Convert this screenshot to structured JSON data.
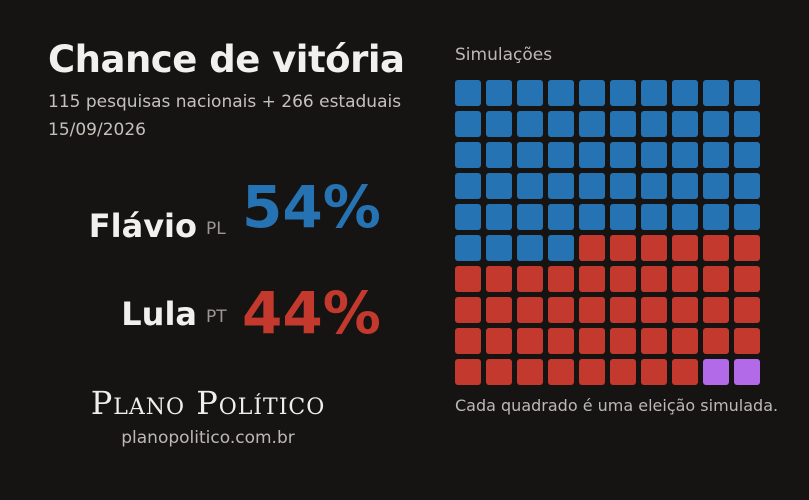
{
  "header": {
    "title": "Chance de vitória",
    "subtitle": "115 pesquisas nacionais + 266 estaduais",
    "date": "15/09/2026"
  },
  "candidates": [
    {
      "name": "Flávio",
      "party": "PL",
      "pct_label": "54%",
      "color": "#2673b3"
    },
    {
      "name": "Lula",
      "party": "PT",
      "pct_label": "44%",
      "color": "#c4392d"
    }
  ],
  "brand": {
    "name": "Plano Político",
    "url": "planopolitico.com.br"
  },
  "chart_data": {
    "type": "waffle",
    "title": "Simulações",
    "caption": "Cada quadrado é uma eleição simulada.",
    "grid": {
      "rows": 10,
      "cols": 10
    },
    "series": [
      {
        "name": "Flávio",
        "values": [
          54
        ],
        "color": "#2673b3"
      },
      {
        "name": "Lula",
        "values": [
          44
        ],
        "color": "#c4392d"
      },
      {
        "name": "",
        "values": [
          2
        ],
        "color": "#b36ae8"
      }
    ]
  }
}
